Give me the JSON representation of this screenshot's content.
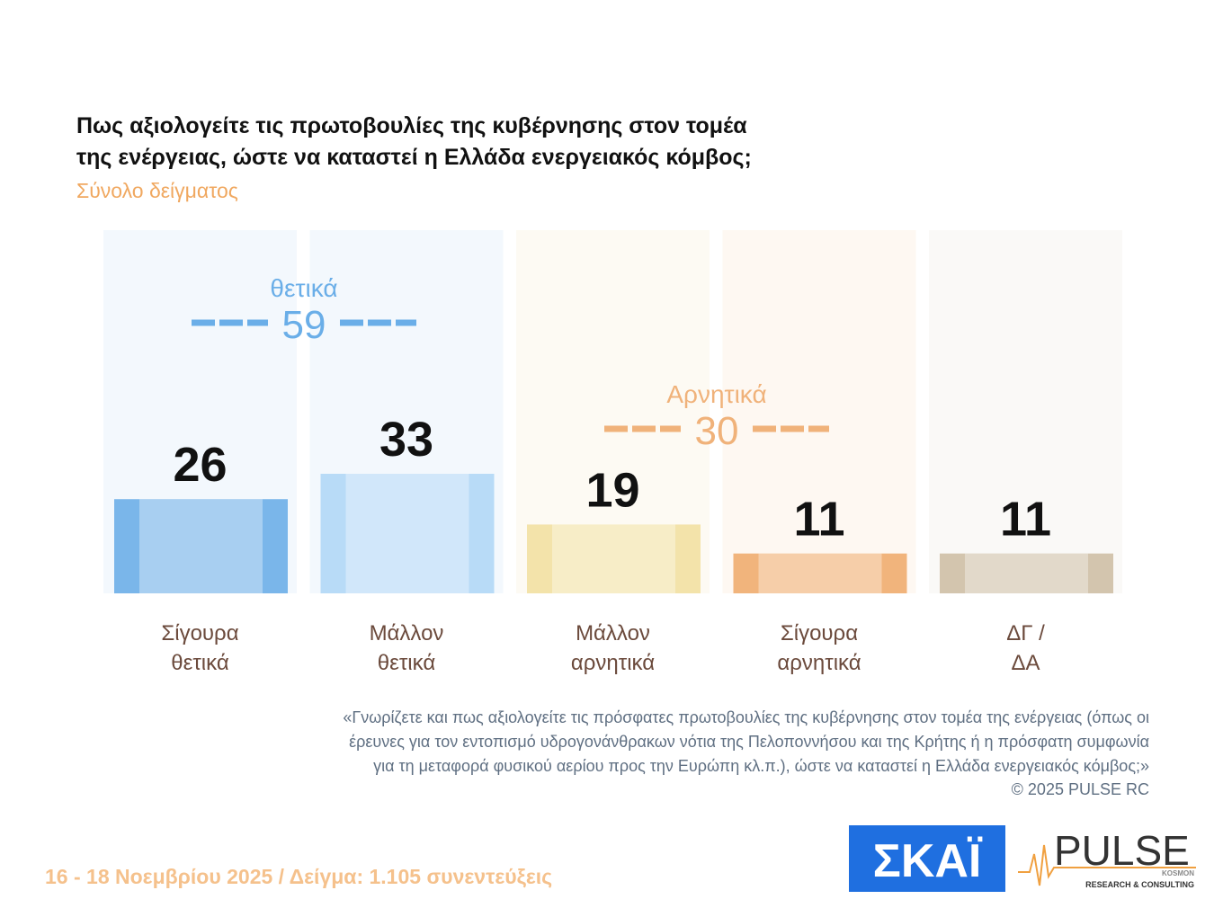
{
  "chart_data": {
    "type": "bar",
    "title": [
      "Πως αξιολογείτε τις πρωτοβουλίες της κυβέρνησης στον τομέα",
      "της ενέργειας, ώστε να καταστεί η Ελλάδα ενεργειακός κόμβος;"
    ],
    "subtitle": "Σύνολο δείγματος",
    "categories": [
      [
        "Σίγουρα",
        "θετικά"
      ],
      [
        "Μάλλον",
        "θετικά"
      ],
      [
        "Μάλλον",
        "αρνητικά"
      ],
      [
        "Σίγουρα",
        "αρνητικά"
      ],
      [
        "ΔΓ /",
        "ΔΑ"
      ]
    ],
    "values": [
      26,
      33,
      19,
      11,
      11
    ],
    "colors": [
      "#7ab6ea",
      "#b8dbf7",
      "#f3e3aa",
      "#f1b47c",
      "#d3c5ae"
    ],
    "groups": [
      {
        "label": "θετικά",
        "value": 59,
        "color": "#6aaee8"
      },
      {
        "label": "Αρνητικά",
        "value": 30,
        "color": "#f0b27a"
      }
    ],
    "footnote": [
      "«Γνωρίζετε και πως αξιολογείτε τις πρόσφατες πρωτοβουλίες της κυβέρνησης στον τομέα της ενέργειας (όπως οι",
      "έρευνες για τον εντοπισμό υδρογονάνθρακων νότια της Πελοποννήσου και της Κρήτης ή η πρόσφατη συμφωνία",
      "για τη μεταφορά φυσικού αερίου προς την Ευρώπη κλ.π.), ώστε να καταστεί η Ελλάδα ενεργειακός κόμβος;»"
    ],
    "copyright": "©  2025  PULSE RC",
    "footer": "16 - 18 Νοεμβρίου 2025  /  Δείγμα:  1.105 συνεντεύξεις",
    "logos": {
      "skai": "ΣΚΑΪ",
      "pulse": "PULSE",
      "pulse_sub": "RESEARCH & CONSULTING",
      "pulse_tag": "KOSMON"
    }
  }
}
